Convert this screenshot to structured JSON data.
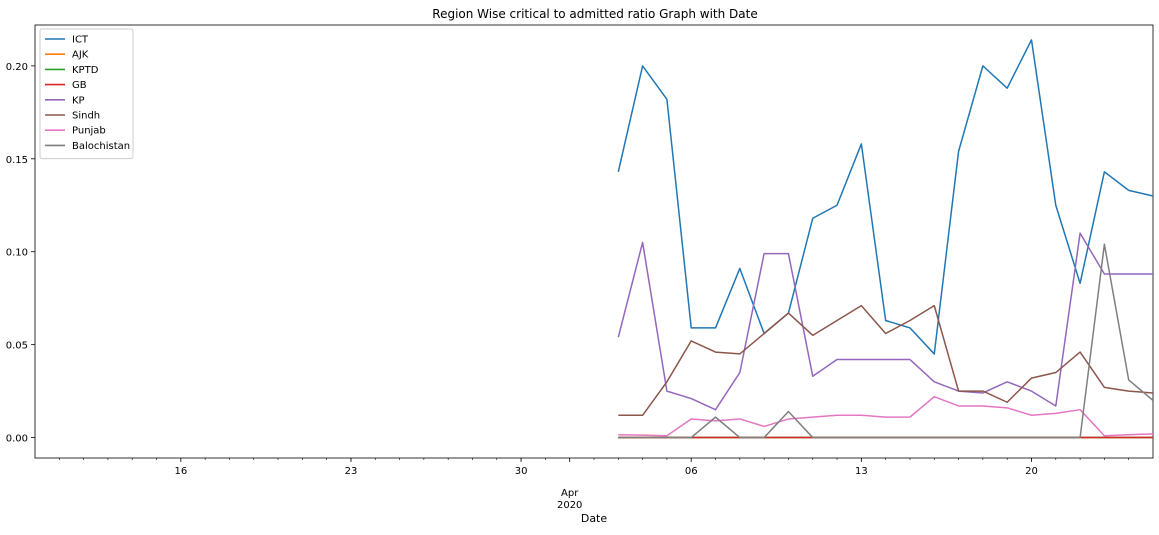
{
  "chart_data": {
    "type": "line",
    "title": "Region Wise critical to admitted ratio Graph with Date",
    "xlabel": "Date",
    "ylabel": "",
    "x_axis": {
      "start": "2020-03-10",
      "end": "2020-04-25",
      "major_ticks": [
        {
          "date": "2020-03-16",
          "label": "16"
        },
        {
          "date": "2020-03-23",
          "label": "23"
        },
        {
          "date": "2020-03-30",
          "label": "30"
        },
        {
          "date": "2020-04-06",
          "label": "06"
        },
        {
          "date": "2020-04-13",
          "label": "13"
        },
        {
          "date": "2020-04-20",
          "label": "20"
        }
      ],
      "month_label": {
        "date": "2020-04-01",
        "line1": "Apr",
        "line2": "2020"
      }
    },
    "y_axis": {
      "ylim": [
        -0.011,
        0.222
      ],
      "ticks": [
        0.0,
        0.05,
        0.1,
        0.15,
        0.2
      ],
      "tick_labels": [
        "0.00",
        "0.05",
        "0.10",
        "0.15",
        "0.20"
      ]
    },
    "grid": false,
    "legend_position": "top-left",
    "x": [
      "2020-04-03",
      "2020-04-04",
      "2020-04-05",
      "2020-04-06",
      "2020-04-07",
      "2020-04-08",
      "2020-04-09",
      "2020-04-10",
      "2020-04-11",
      "2020-04-12",
      "2020-04-13",
      "2020-04-14",
      "2020-04-15",
      "2020-04-16",
      "2020-04-17",
      "2020-04-18",
      "2020-04-19",
      "2020-04-20",
      "2020-04-21",
      "2020-04-22",
      "2020-04-23",
      "2020-04-24",
      "2020-04-25"
    ],
    "series": [
      {
        "name": "ICT",
        "color": "#1f77b4",
        "values": [
          0.143,
          0.2,
          0.182,
          0.059,
          0.059,
          0.091,
          0.056,
          0.067,
          0.118,
          0.125,
          0.158,
          0.063,
          0.059,
          0.045,
          0.154,
          0.2,
          0.188,
          0.214,
          0.125,
          0.083,
          0.143,
          0.133,
          0.13
        ]
      },
      {
        "name": "AJK",
        "color": "#ff7f0e",
        "values": [
          0,
          0,
          0,
          0,
          0,
          0,
          0,
          0,
          0,
          0,
          0,
          0,
          0,
          0,
          0,
          0,
          0,
          0,
          0,
          0,
          0,
          0,
          0
        ]
      },
      {
        "name": "KPTD",
        "color": "#2ca02c",
        "values": [
          0,
          0,
          0,
          0,
          0,
          0,
          0,
          0,
          0,
          0,
          0,
          0,
          0,
          0,
          0,
          0,
          0,
          0,
          0,
          0,
          0,
          0,
          0
        ]
      },
      {
        "name": "GB",
        "color": "#d62728",
        "values": [
          0,
          0,
          0,
          0,
          0,
          0,
          0,
          0,
          0,
          0,
          0,
          0,
          0,
          0,
          0,
          0,
          0,
          0,
          0,
          0,
          0,
          0,
          0
        ]
      },
      {
        "name": "KP",
        "color": "#9467bd",
        "values": [
          0.054,
          0.105,
          0.025,
          0.021,
          0.015,
          0.035,
          0.099,
          0.099,
          0.033,
          0.042,
          0.042,
          0.042,
          0.042,
          0.03,
          0.025,
          0.024,
          0.03,
          0.025,
          0.017,
          0.11,
          0.088,
          0.088,
          0.088
        ]
      },
      {
        "name": "Sindh",
        "color": "#8c564b",
        "values": [
          0.012,
          0.012,
          0.03,
          0.052,
          0.046,
          0.045,
          0.056,
          0.067,
          0.055,
          0.063,
          0.071,
          0.056,
          0.063,
          0.071,
          0.025,
          0.025,
          0.019,
          0.032,
          0.035,
          0.046,
          0.027,
          0.025,
          0.024
        ]
      },
      {
        "name": "Punjab",
        "color": "#e377c2",
        "values": [
          0.0015,
          0.0013,
          0.001,
          0.01,
          0.009,
          0.01,
          0.006,
          0.01,
          0.011,
          0.012,
          0.012,
          0.011,
          0.011,
          0.022,
          0.017,
          0.017,
          0.016,
          0.012,
          0.013,
          0.015,
          0.001,
          0.0015,
          0.002
        ]
      },
      {
        "name": "Balochistan",
        "color": "#7f7f7f",
        "values": [
          0,
          0,
          0,
          0,
          0.011,
          0,
          0,
          0.014,
          0,
          0,
          0,
          0,
          0,
          0,
          0,
          0,
          0,
          0,
          0,
          0,
          0.104,
          0.031,
          0.02
        ]
      }
    ]
  }
}
